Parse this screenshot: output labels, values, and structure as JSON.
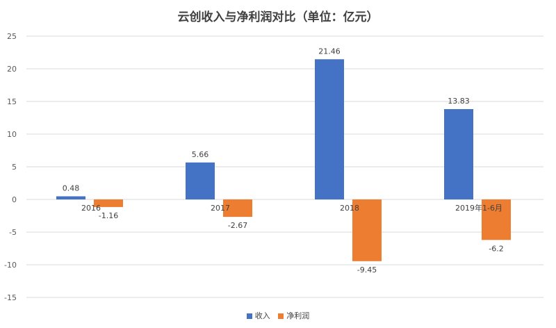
{
  "chart_data": {
    "type": "bar",
    "title": "云创收入与净利润对比（单位：亿元）",
    "categories": [
      "2016",
      "2017",
      "2018",
      "2019年1-6月"
    ],
    "series": [
      {
        "name": "收入",
        "values": [
          0.48,
          5.66,
          21.46,
          13.83
        ],
        "color": "#4472C4"
      },
      {
        "name": "净利润",
        "values": [
          -1.16,
          -2.67,
          -9.45,
          -6.2
        ],
        "color": "#ED7D31"
      }
    ],
    "ylim": [
      -15,
      25
    ],
    "yticks": [
      25,
      20,
      15,
      10,
      5,
      0,
      -5,
      -10,
      -15
    ],
    "grid": "horizontal",
    "legend_position": "bottom"
  }
}
